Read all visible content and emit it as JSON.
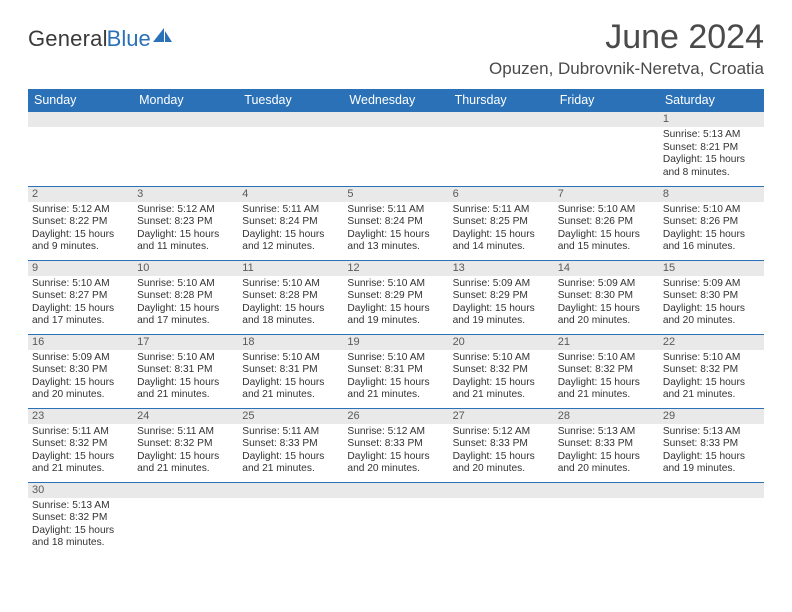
{
  "logo": {
    "word1": "General",
    "word2": "Blue",
    "word2_color": "#2a71b8",
    "sail_color": "#2a71b8"
  },
  "title": "June 2024",
  "location": "Opuzen, Dubrovnik-Neretva, Croatia",
  "colors": {
    "header_bg": "#2a71b8",
    "header_text": "#ffffff",
    "daynum_bg": "#e9e9e9",
    "rule": "#2a71b8",
    "body_text": "#333333"
  },
  "weekdays": [
    "Sunday",
    "Monday",
    "Tuesday",
    "Wednesday",
    "Thursday",
    "Friday",
    "Saturday"
  ],
  "weeks": [
    [
      null,
      null,
      null,
      null,
      null,
      null,
      {
        "n": "1",
        "sunrise": "5:13 AM",
        "sunset": "8:21 PM",
        "daylight": "15 hours and 8 minutes."
      }
    ],
    [
      {
        "n": "2",
        "sunrise": "5:12 AM",
        "sunset": "8:22 PM",
        "daylight": "15 hours and 9 minutes."
      },
      {
        "n": "3",
        "sunrise": "5:12 AM",
        "sunset": "8:23 PM",
        "daylight": "15 hours and 11 minutes."
      },
      {
        "n": "4",
        "sunrise": "5:11 AM",
        "sunset": "8:24 PM",
        "daylight": "15 hours and 12 minutes."
      },
      {
        "n": "5",
        "sunrise": "5:11 AM",
        "sunset": "8:24 PM",
        "daylight": "15 hours and 13 minutes."
      },
      {
        "n": "6",
        "sunrise": "5:11 AM",
        "sunset": "8:25 PM",
        "daylight": "15 hours and 14 minutes."
      },
      {
        "n": "7",
        "sunrise": "5:10 AM",
        "sunset": "8:26 PM",
        "daylight": "15 hours and 15 minutes."
      },
      {
        "n": "8",
        "sunrise": "5:10 AM",
        "sunset": "8:26 PM",
        "daylight": "15 hours and 16 minutes."
      }
    ],
    [
      {
        "n": "9",
        "sunrise": "5:10 AM",
        "sunset": "8:27 PM",
        "daylight": "15 hours and 17 minutes."
      },
      {
        "n": "10",
        "sunrise": "5:10 AM",
        "sunset": "8:28 PM",
        "daylight": "15 hours and 17 minutes."
      },
      {
        "n": "11",
        "sunrise": "5:10 AM",
        "sunset": "8:28 PM",
        "daylight": "15 hours and 18 minutes."
      },
      {
        "n": "12",
        "sunrise": "5:10 AM",
        "sunset": "8:29 PM",
        "daylight": "15 hours and 19 minutes."
      },
      {
        "n": "13",
        "sunrise": "5:09 AM",
        "sunset": "8:29 PM",
        "daylight": "15 hours and 19 minutes."
      },
      {
        "n": "14",
        "sunrise": "5:09 AM",
        "sunset": "8:30 PM",
        "daylight": "15 hours and 20 minutes."
      },
      {
        "n": "15",
        "sunrise": "5:09 AM",
        "sunset": "8:30 PM",
        "daylight": "15 hours and 20 minutes."
      }
    ],
    [
      {
        "n": "16",
        "sunrise": "5:09 AM",
        "sunset": "8:30 PM",
        "daylight": "15 hours and 20 minutes."
      },
      {
        "n": "17",
        "sunrise": "5:10 AM",
        "sunset": "8:31 PM",
        "daylight": "15 hours and 21 minutes."
      },
      {
        "n": "18",
        "sunrise": "5:10 AM",
        "sunset": "8:31 PM",
        "daylight": "15 hours and 21 minutes."
      },
      {
        "n": "19",
        "sunrise": "5:10 AM",
        "sunset": "8:31 PM",
        "daylight": "15 hours and 21 minutes."
      },
      {
        "n": "20",
        "sunrise": "5:10 AM",
        "sunset": "8:32 PM",
        "daylight": "15 hours and 21 minutes."
      },
      {
        "n": "21",
        "sunrise": "5:10 AM",
        "sunset": "8:32 PM",
        "daylight": "15 hours and 21 minutes."
      },
      {
        "n": "22",
        "sunrise": "5:10 AM",
        "sunset": "8:32 PM",
        "daylight": "15 hours and 21 minutes."
      }
    ],
    [
      {
        "n": "23",
        "sunrise": "5:11 AM",
        "sunset": "8:32 PM",
        "daylight": "15 hours and 21 minutes."
      },
      {
        "n": "24",
        "sunrise": "5:11 AM",
        "sunset": "8:32 PM",
        "daylight": "15 hours and 21 minutes."
      },
      {
        "n": "25",
        "sunrise": "5:11 AM",
        "sunset": "8:33 PM",
        "daylight": "15 hours and 21 minutes."
      },
      {
        "n": "26",
        "sunrise": "5:12 AM",
        "sunset": "8:33 PM",
        "daylight": "15 hours and 20 minutes."
      },
      {
        "n": "27",
        "sunrise": "5:12 AM",
        "sunset": "8:33 PM",
        "daylight": "15 hours and 20 minutes."
      },
      {
        "n": "28",
        "sunrise": "5:13 AM",
        "sunset": "8:33 PM",
        "daylight": "15 hours and 20 minutes."
      },
      {
        "n": "29",
        "sunrise": "5:13 AM",
        "sunset": "8:33 PM",
        "daylight": "15 hours and 19 minutes."
      }
    ],
    [
      {
        "n": "30",
        "sunrise": "5:13 AM",
        "sunset": "8:32 PM",
        "daylight": "15 hours and 18 minutes."
      },
      null,
      null,
      null,
      null,
      null,
      null
    ]
  ],
  "labels": {
    "sunrise": "Sunrise: ",
    "sunset": "Sunset: ",
    "daylight": "Daylight: "
  }
}
